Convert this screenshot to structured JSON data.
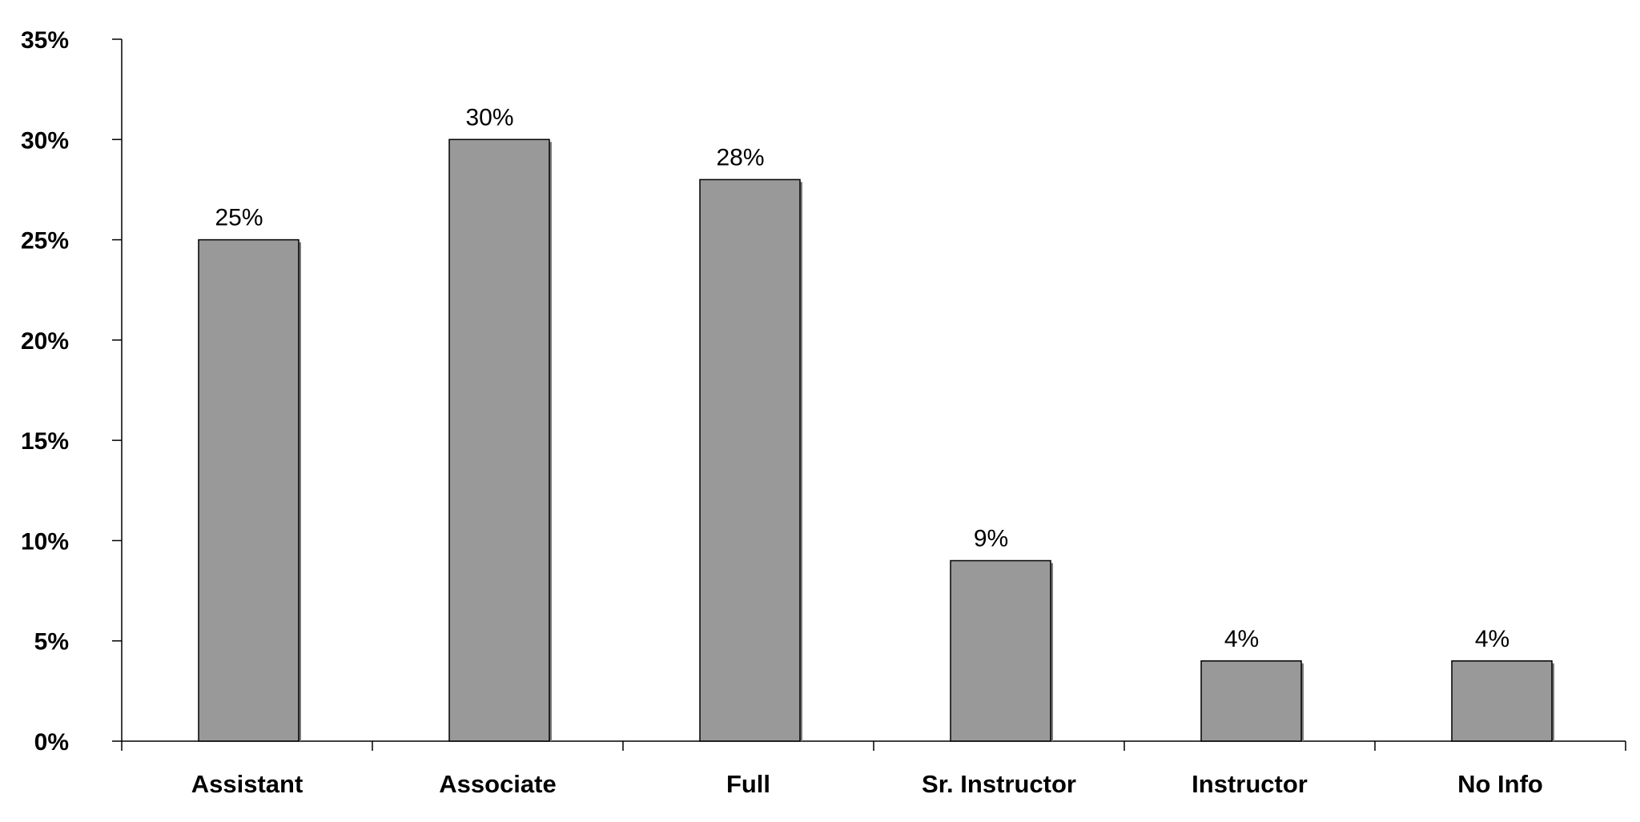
{
  "chart_data": {
    "type": "bar",
    "title": "",
    "xlabel": "",
    "ylabel": "",
    "categories": [
      "Assistant",
      "Associate",
      "Full",
      "Sr. Instructor",
      "Instructor",
      "No Info"
    ],
    "values": [
      25,
      30,
      28,
      9,
      4,
      4
    ],
    "data_labels": [
      "25%",
      "30%",
      "28%",
      "9%",
      "4%",
      "4%"
    ],
    "ylim": [
      0,
      35
    ],
    "yticks": [
      0,
      5,
      10,
      15,
      20,
      25,
      30,
      35
    ],
    "ytick_labels": [
      "0%",
      "5%",
      "10%",
      "15%",
      "20%",
      "25%",
      "30%",
      "35%"
    ],
    "grid": false,
    "legend": "none",
    "colors": {
      "bar_fill": "#999999",
      "bar_stroke": "#000000",
      "bar_shadow": "#7a7a7a",
      "axis": "#000000"
    }
  }
}
